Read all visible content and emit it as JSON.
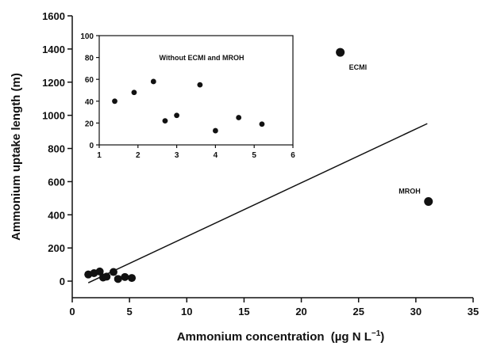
{
  "chart_data": [
    {
      "type": "scatter",
      "title": "",
      "xlabel": "Ammonium concentration",
      "xlabel_unit": "(µg N L",
      "xlabel_sup": "−1",
      "xlabel_close": ")",
      "ylabel": "Ammonium uptake length (m)",
      "xlim": [
        0,
        35
      ],
      "ylim": [
        -100,
        1600
      ],
      "xticks": [
        0,
        5,
        10,
        15,
        20,
        25,
        30,
        35
      ],
      "yticks": [
        0,
        200,
        400,
        600,
        800,
        1000,
        1200,
        1400,
        1600
      ],
      "points": [
        {
          "x": 1.4,
          "y": 40
        },
        {
          "x": 1.9,
          "y": 48
        },
        {
          "x": 2.4,
          "y": 58
        },
        {
          "x": 2.7,
          "y": 22
        },
        {
          "x": 3.0,
          "y": 27
        },
        {
          "x": 3.6,
          "y": 55
        },
        {
          "x": 4.0,
          "y": 13
        },
        {
          "x": 4.6,
          "y": 25
        },
        {
          "x": 5.2,
          "y": 19
        },
        {
          "x": 23.4,
          "y": 1380,
          "label": "ECMI"
        },
        {
          "x": 31.1,
          "y": 480,
          "label": "MROH"
        }
      ],
      "fit_line": {
        "x": [
          1.4,
          31.0
        ],
        "y": [
          -10,
          950
        ]
      },
      "color": "#111111"
    },
    {
      "type": "scatter",
      "title": "Without ECMI and MROH",
      "xlim": [
        1,
        6
      ],
      "ylim": [
        0,
        100
      ],
      "xticks": [
        1,
        2,
        3,
        4,
        5,
        6
      ],
      "yticks": [
        0,
        20,
        40,
        60,
        80,
        100
      ],
      "points": [
        {
          "x": 1.4,
          "y": 40
        },
        {
          "x": 1.9,
          "y": 48
        },
        {
          "x": 2.4,
          "y": 58
        },
        {
          "x": 2.7,
          "y": 22
        },
        {
          "x": 3.0,
          "y": 27
        },
        {
          "x": 3.6,
          "y": 55
        },
        {
          "x": 4.0,
          "y": 13
        },
        {
          "x": 4.6,
          "y": 25
        },
        {
          "x": 5.2,
          "y": 19
        }
      ],
      "color": "#111111"
    }
  ]
}
